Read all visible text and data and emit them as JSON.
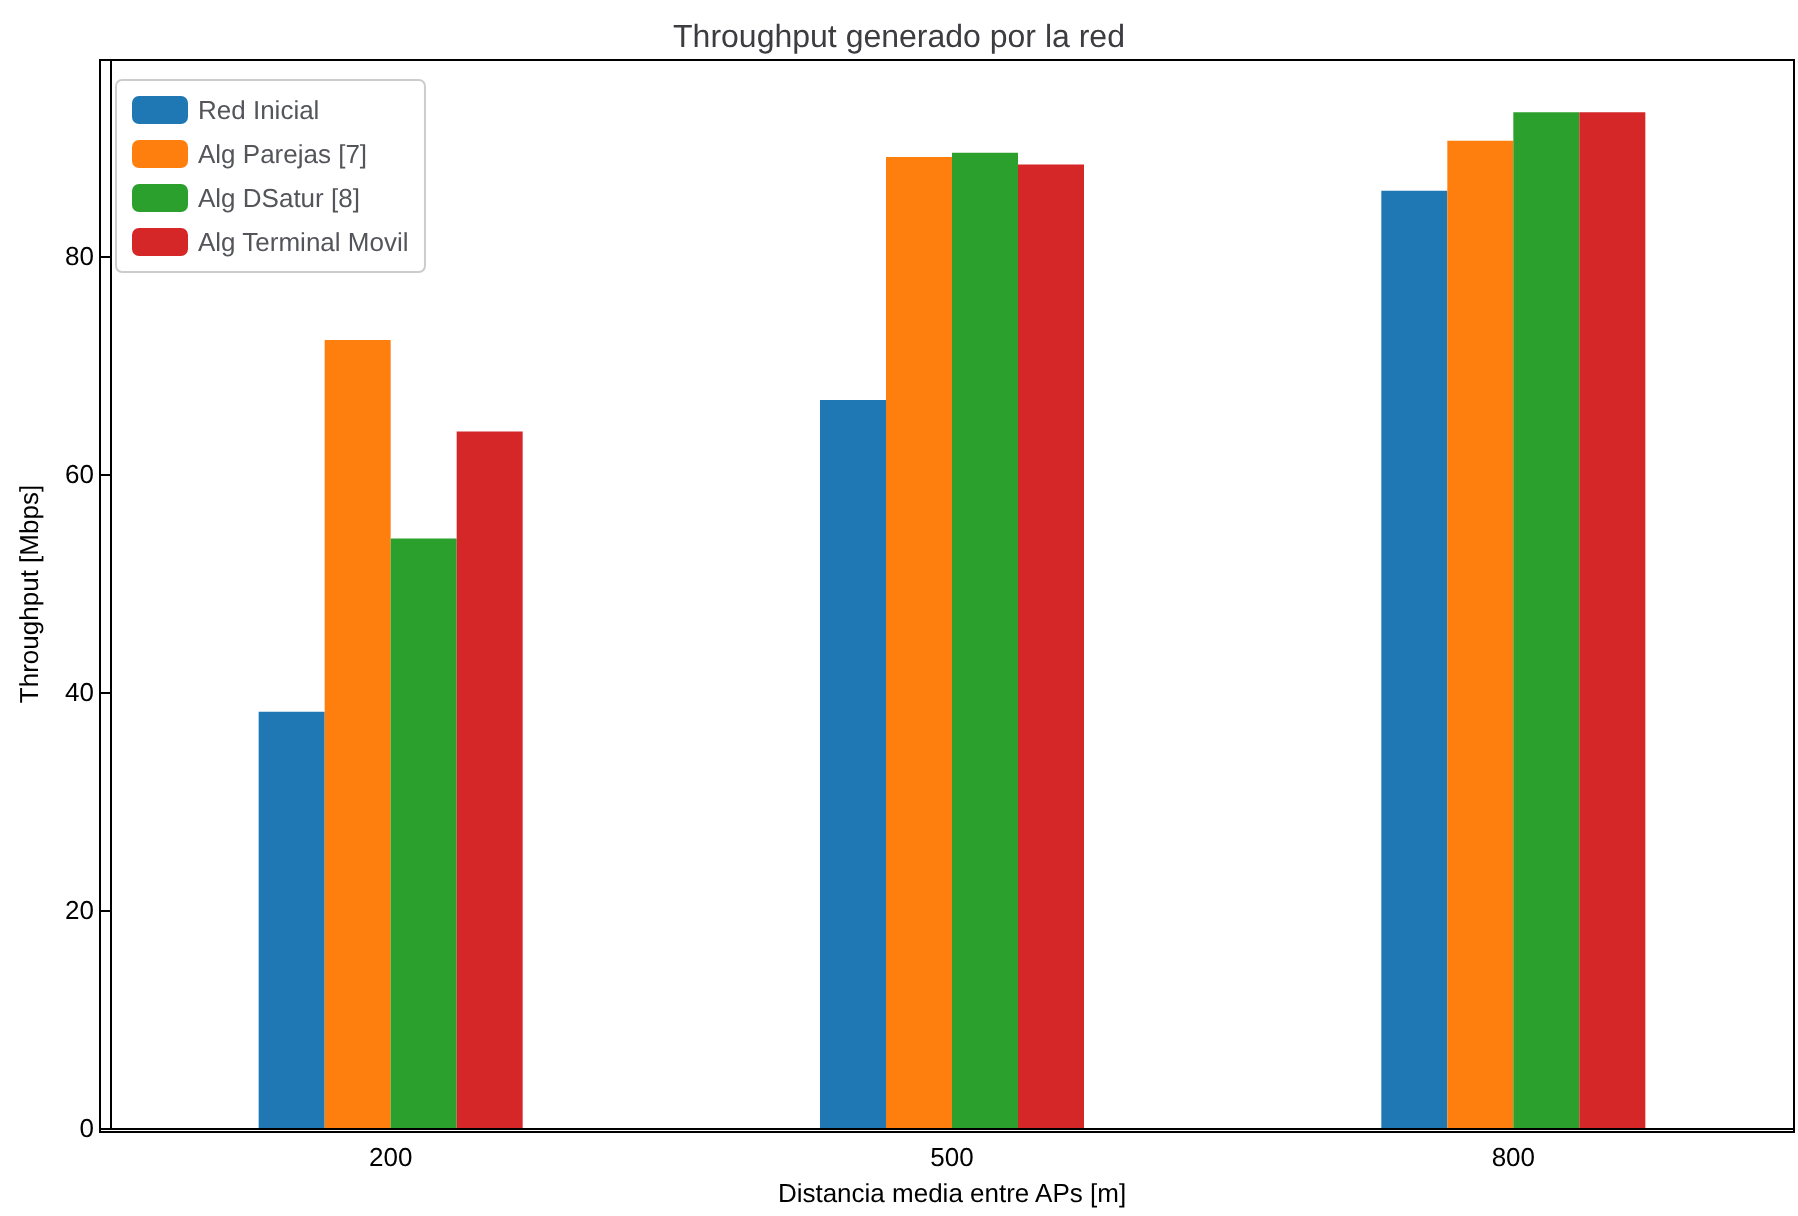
{
  "chart_data": {
    "type": "bar",
    "title": "Throughput generado por la red",
    "xlabel": "Distancia media entre APs [m]",
    "ylabel": "Throughput [Mbps]",
    "categories": [
      "200",
      "500",
      "800"
    ],
    "series": [
      {
        "name": "Red Inicial",
        "color": "#1f77b4",
        "values": [
          38.2,
          66.8,
          86.0
        ]
      },
      {
        "name": "Alg Parejas [7]",
        "color": "#ff7f0e",
        "values": [
          72.3,
          89.1,
          90.6
        ]
      },
      {
        "name": "Alg DSatur [8]",
        "color": "#2ca02c",
        "values": [
          54.1,
          89.5,
          93.2
        ]
      },
      {
        "name": "Alg Terminal Movil",
        "color": "#d62728",
        "values": [
          63.9,
          88.4,
          93.2
        ]
      }
    ],
    "ylim": [
      0,
      98
    ],
    "yticks": [
      0,
      20,
      40,
      60,
      80
    ],
    "grid": false,
    "legend": "top left"
  }
}
